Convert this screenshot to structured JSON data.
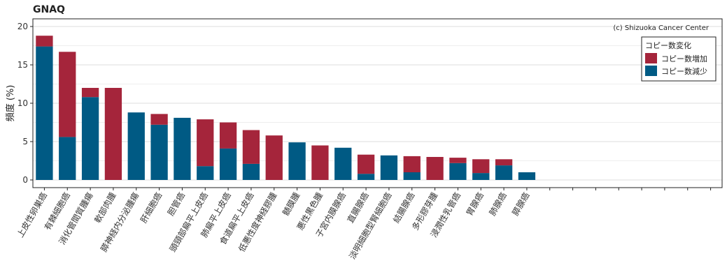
{
  "chart_data": {
    "type": "bar",
    "stacked": true,
    "title": "GNAQ",
    "ylabel": "頻度 (%)",
    "xlabel": "",
    "ylim": [
      -1,
      21
    ],
    "yticks": [
      0,
      5,
      10,
      15,
      20
    ],
    "grid": true,
    "credit": "(c) Shizuoka Cancer Center",
    "legend": {
      "title": "コピー数変化",
      "position": "top-right"
    },
    "categories": [
      "上皮性卵巣癌",
      "有棘細胞癌",
      "消化管間質腫瘍",
      "軟部肉腫",
      "膵神経内分泌腫瘍",
      "肝細胞癌",
      "胆管癌",
      "頭頸部扁平上皮癌",
      "肺扁平上皮癌",
      "食道扁平上皮癌",
      "低悪性度神経膠腫",
      "髄膜腫",
      "悪性黒色腫",
      "子宮内膜腺癌",
      "直腸腺癌",
      "淡明細胞型腎細胞癌",
      "結腸腺癌",
      "多形膠芽腫",
      "浸潤性乳管癌",
      "胃腺癌",
      "肺腺癌",
      "膵腺癌"
    ],
    "n_slots": 30,
    "series": [
      {
        "name": "コピー数減少",
        "color": "#005a84",
        "values": [
          17.4,
          5.6,
          10.8,
          0,
          8.8,
          7.2,
          8.1,
          1.8,
          4.1,
          2.1,
          0,
          4.9,
          0,
          4.2,
          0.8,
          3.2,
          1.0,
          0,
          2.2,
          0.9,
          1.9,
          1.0
        ]
      },
      {
        "name": "コピー数増加",
        "color": "#a5253b",
        "values": [
          1.4,
          11.1,
          1.2,
          12.0,
          0,
          1.4,
          0,
          6.1,
          3.4,
          4.4,
          5.8,
          0,
          4.5,
          0,
          2.5,
          0,
          2.1,
          3.0,
          0.7,
          1.8,
          0.8,
          0
        ]
      }
    ]
  }
}
